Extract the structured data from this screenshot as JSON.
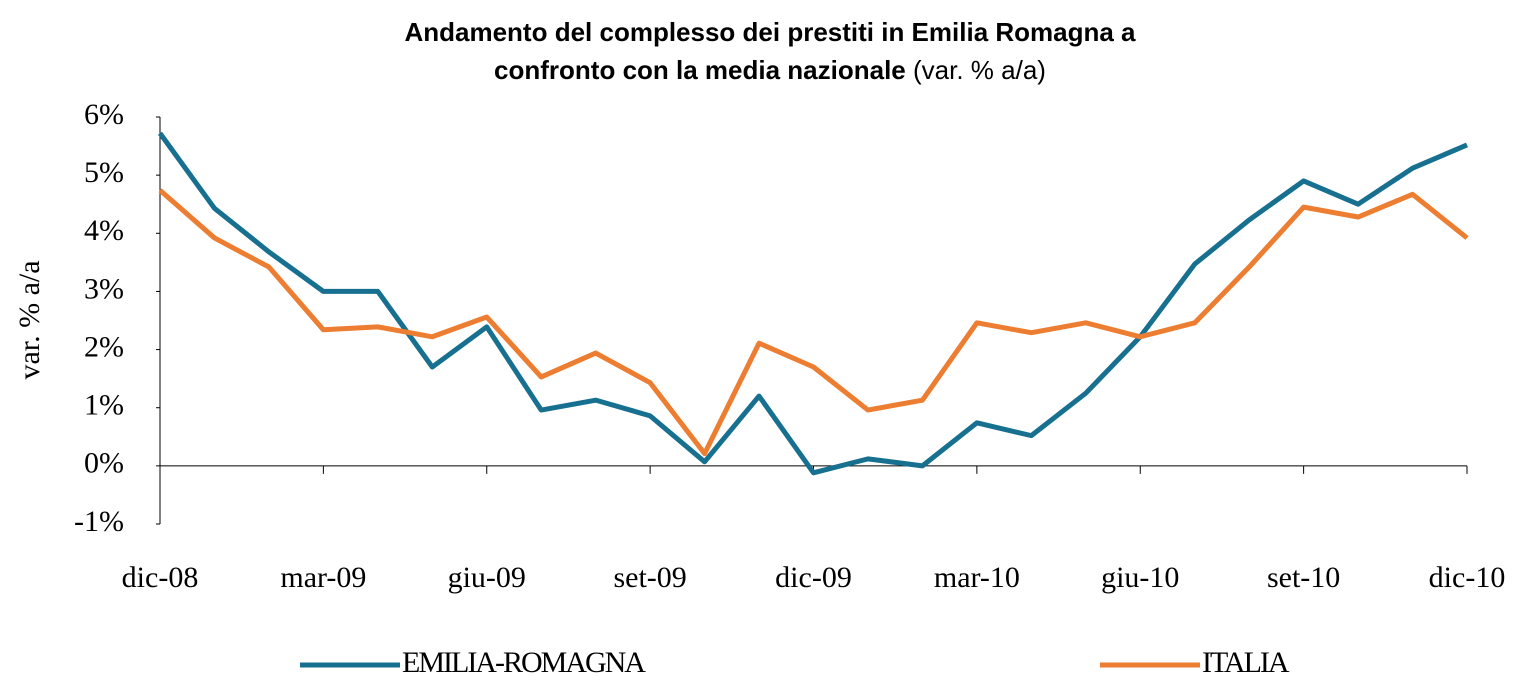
{
  "chart_data": {
    "type": "line",
    "title": [
      "Andamento del complesso dei prestiti in Emilia Romagna a",
      "confronto con la media nazionale"
    ],
    "subtitle": "(var. % a/a)",
    "y_label": "var. % a/a",
    "categories": [
      "dic-08",
      null,
      null,
      "mar-09",
      null,
      null,
      "giu-09",
      null,
      null,
      "set-09",
      null,
      null,
      "dic-09",
      null,
      null,
      "mar-10",
      null,
      null,
      "giu-10",
      null,
      null,
      "set-10",
      null,
      null,
      "dic-10"
    ],
    "series": [
      {
        "name": "EMILIA-ROMAGNA",
        "color": "#17708f",
        "values": [
          5.72,
          4.43,
          3.68,
          3.0,
          3.0,
          1.7,
          2.39,
          0.96,
          1.13,
          0.86,
          0.07,
          1.2,
          -0.12,
          0.12,
          0.0,
          0.74,
          0.52,
          1.25,
          2.22,
          3.47,
          4.23,
          4.9,
          4.5,
          5.12,
          5.52
        ]
      },
      {
        "name": "ITALIA",
        "color": "#ed7d31",
        "values": [
          4.74,
          3.92,
          3.42,
          2.34,
          2.39,
          2.22,
          2.56,
          1.53,
          1.94,
          1.43,
          0.21,
          2.11,
          1.7,
          0.96,
          1.13,
          2.46,
          2.29,
          2.46,
          2.22,
          2.46,
          3.42,
          4.45,
          4.28,
          4.67,
          3.92
        ]
      }
    ],
    "ylim": [
      -1,
      6
    ],
    "yticks": [
      {
        "value": -1,
        "label": "-1%"
      },
      {
        "value": 0,
        "label": "0%"
      },
      {
        "value": 1,
        "label": "1%"
      },
      {
        "value": 2,
        "label": "2%"
      },
      {
        "value": 3,
        "label": "3%"
      },
      {
        "value": 4,
        "label": "4%"
      },
      {
        "value": 5,
        "label": "5%"
      },
      {
        "value": 6,
        "label": "6%"
      }
    ],
    "grid": false,
    "legend": "bottom"
  }
}
